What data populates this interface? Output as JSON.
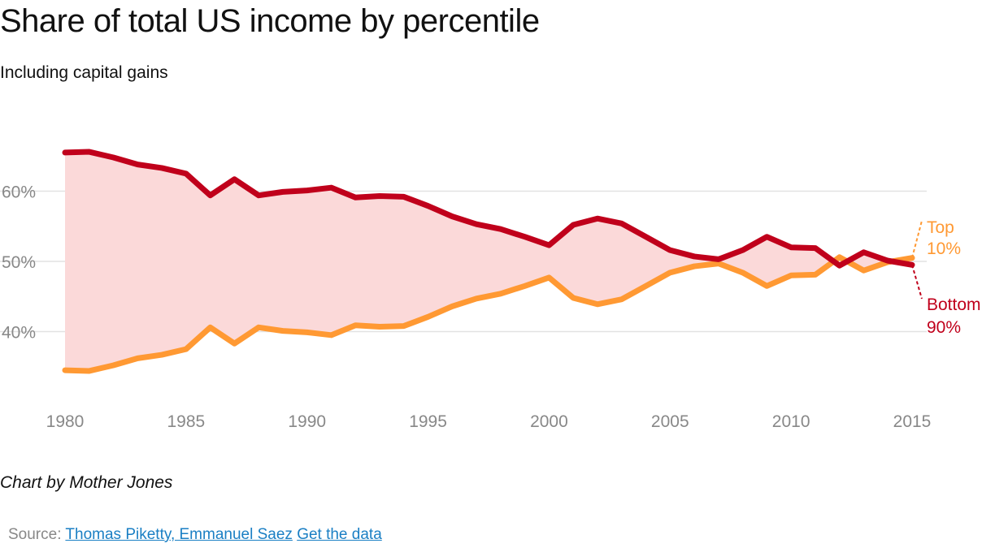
{
  "chart_data": {
    "type": "area",
    "title": "Share of total US income by percentile",
    "subtitle": "Including capital gains",
    "x": [
      1980,
      1981,
      1982,
      1983,
      1984,
      1985,
      1986,
      1987,
      1988,
      1989,
      1990,
      1991,
      1992,
      1993,
      1994,
      1995,
      1996,
      1997,
      1998,
      1999,
      2000,
      2001,
      2002,
      2003,
      2004,
      2005,
      2006,
      2007,
      2008,
      2009,
      2010,
      2011,
      2012,
      2013,
      2014,
      2015
    ],
    "series": [
      {
        "name": "Top 10%",
        "label_line1": "Top",
        "label_line2": "10%",
        "color": "#ff9933",
        "values": [
          34.5,
          34.4,
          35.2,
          36.2,
          36.7,
          37.5,
          40.6,
          38.3,
          40.6,
          40.1,
          39.9,
          39.5,
          40.9,
          40.7,
          40.8,
          42.1,
          43.6,
          44.7,
          45.4,
          46.5,
          47.7,
          44.8,
          43.9,
          44.6,
          46.5,
          48.4,
          49.3,
          49.7,
          48.4,
          46.5,
          48.0,
          48.1,
          50.6,
          48.7,
          49.9,
          50.5
        ]
      },
      {
        "name": "Bottom 90%",
        "label_line1": "Bottom",
        "label_line2": "90%",
        "color": "#c0001b",
        "values": [
          65.5,
          65.6,
          64.8,
          63.8,
          63.3,
          62.5,
          59.4,
          61.7,
          59.4,
          59.9,
          60.1,
          60.5,
          59.1,
          59.3,
          59.2,
          57.9,
          56.4,
          55.3,
          54.6,
          53.5,
          52.3,
          55.2,
          56.1,
          55.4,
          53.5,
          51.6,
          50.7,
          50.3,
          51.6,
          53.5,
          52.0,
          51.9,
          49.4,
          51.3,
          50.1,
          49.5
        ]
      }
    ],
    "fill_between_color": "#fbd9d9",
    "xticks": [
      1980,
      1985,
      1990,
      1995,
      2000,
      2005,
      2010,
      2015
    ],
    "xtick_labels": [
      "1980",
      "1985",
      "1990",
      "1995",
      "2000",
      "2005",
      "2010",
      "2015"
    ],
    "yticks": [
      40,
      50,
      60
    ],
    "ytick_labels": [
      "40%",
      "50%",
      "60%"
    ],
    "ylim": [
      30,
      70
    ],
    "xlim": [
      1980,
      2015
    ],
    "grid": true
  },
  "footer": {
    "credit": "Chart by Mother Jones",
    "source_label": "Source:",
    "source_link": "Thomas Piketty, Emmanuel Saez",
    "data_link": "Get the data"
  }
}
